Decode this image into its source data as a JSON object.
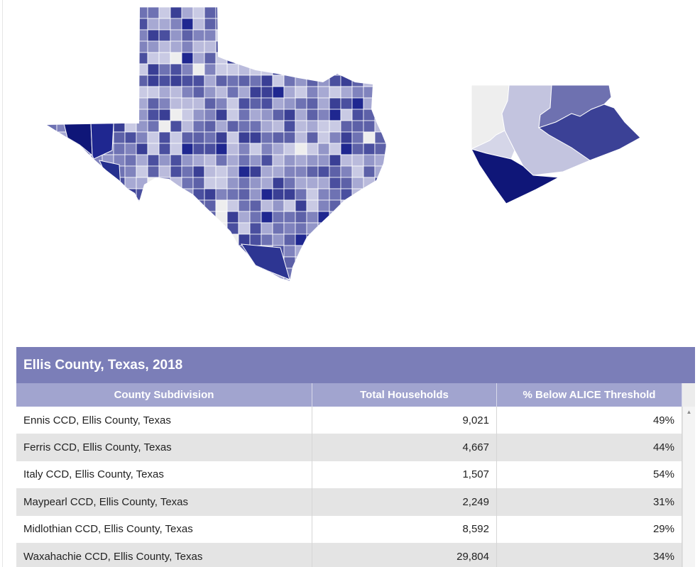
{
  "colors": {
    "title_bar": "#7b7eb8",
    "header_row": "#a1a4cf",
    "row_alt": "#e4e4e4",
    "map_darkest": "#0f1678",
    "map_lightest": "#eeeeee"
  },
  "maps": {
    "state": "Texas",
    "county": "Ellis County"
  },
  "table": {
    "title": "Ellis County, Texas, 2018",
    "columns": [
      "County Subdivision",
      "Total Households",
      "% Below ALICE Threshold"
    ],
    "rows": [
      {
        "subdivision": "Ennis CCD, Ellis County, Texas",
        "households": "9,021",
        "below": "49%"
      },
      {
        "subdivision": "Ferris CCD, Ellis County, Texas",
        "households": "4,667",
        "below": "44%"
      },
      {
        "subdivision": "Italy CCD, Ellis County, Texas",
        "households": "1,507",
        "below": "54%"
      },
      {
        "subdivision": "Maypearl CCD, Ellis County, Texas",
        "households": "2,249",
        "below": "31%"
      },
      {
        "subdivision": "Midlothian CCD, Ellis County, Texas",
        "households": "8,592",
        "below": "29%"
      },
      {
        "subdivision": "Waxahachie CCD, Ellis County, Texas",
        "households": "29,804",
        "below": "34%"
      }
    ],
    "scroll_up_icon": "caret-up-icon"
  }
}
